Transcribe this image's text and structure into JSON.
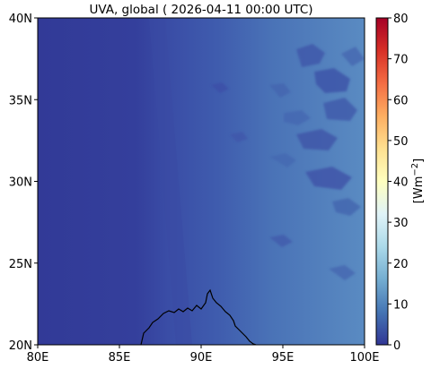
{
  "title": "UVA, global ( 2026-04-11 00:00 UTC)",
  "map": {
    "lon_range": [
      80,
      100
    ],
    "lat_range": [
      20,
      40
    ],
    "lon_ticks": [
      {
        "value": 80,
        "label": "80E"
      },
      {
        "value": 85,
        "label": "85E"
      },
      {
        "value": 90,
        "label": "90E"
      },
      {
        "value": 95,
        "label": "95E"
      },
      {
        "value": 100,
        "label": "100E"
      }
    ],
    "lat_ticks": [
      {
        "value": 20,
        "label": "20N"
      },
      {
        "value": 25,
        "label": "25N"
      },
      {
        "value": 30,
        "label": "30N"
      },
      {
        "value": 35,
        "label": "35N"
      },
      {
        "value": 40,
        "label": "40N"
      }
    ],
    "background_color": "#313695",
    "coastline_color": "#000000"
  },
  "colorbar": {
    "label_prefix": "[Wm",
    "label_exponent": "−2",
    "label_suffix": "]",
    "range": [
      0,
      80
    ],
    "ticks": [
      {
        "value": 0,
        "label": "0"
      },
      {
        "value": 10,
        "label": "10"
      },
      {
        "value": 20,
        "label": "20"
      },
      {
        "value": 30,
        "label": "30"
      },
      {
        "value": 40,
        "label": "40"
      },
      {
        "value": 50,
        "label": "50"
      },
      {
        "value": 60,
        "label": "60"
      },
      {
        "value": 70,
        "label": "70"
      },
      {
        "value": 80,
        "label": "80"
      }
    ],
    "colormap": "RdYlBu_r",
    "colors": [
      "#313695",
      "#4575b4",
      "#74add1",
      "#abd9e9",
      "#e0f3f8",
      "#ffffbf",
      "#fee090",
      "#fdae61",
      "#f46d43",
      "#d73027",
      "#a50026"
    ]
  },
  "chart_data": {
    "type": "heatmap",
    "title": "UVA, global ( 2026-04-11 00:00 UTC)",
    "xlabel": "",
    "ylabel": "",
    "xlim": [
      80,
      100
    ],
    "ylim": [
      20,
      40
    ],
    "colorbar_label": "[Wm−2]",
    "vmin": 0,
    "vmax": 80,
    "field_description": "UVA irradiance increasing from west to east",
    "approx_values": [
      {
        "lon_band": [
          80,
          86.5
        ],
        "value": 2
      },
      {
        "lon_band": [
          86.5,
          90
        ],
        "value": 3
      },
      {
        "lon_band": [
          90,
          94
        ],
        "value": 8
      },
      {
        "lon_band": [
          94,
          100
        ],
        "value": 12
      }
    ]
  }
}
